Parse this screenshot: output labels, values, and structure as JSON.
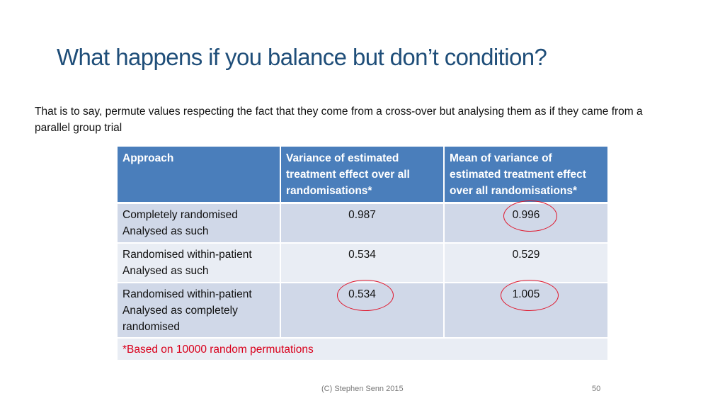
{
  "slide": {
    "title": "What happens if you balance but don’t condition?",
    "intro": "That is to say, permute values respecting the fact that they come from a cross-over but analysing them as if they came from a parallel group trial"
  },
  "table": {
    "headers": [
      "Approach",
      "Variance of estimated treatment effect over all randomisations*",
      "Mean of variance of estimated treatment effect over all randomisations*"
    ],
    "rows": [
      {
        "approach_line1": "Completely randomised",
        "approach_line2": "Analysed as such",
        "variance": "0.987",
        "mean_variance": "0.996"
      },
      {
        "approach_line1": "Randomised within-patient",
        "approach_line2": "Analysed as such",
        "variance": "0.534",
        "mean_variance": "0.529"
      },
      {
        "approach_line1": "Randomised within-patient",
        "approach_line2": "Analysed as completely randomised",
        "variance": "0.534",
        "mean_variance": "1.005"
      }
    ],
    "footnote": "*Based on 10000 random permutations"
  },
  "footer": {
    "credit": "(C) Stephen Senn 2015",
    "page_number": "50"
  },
  "colors": {
    "title": "#1f4e79",
    "header_bg": "#4a7ebb",
    "row_dark": "#d0d8e8",
    "row_light": "#e9edf4",
    "footnote_text": "#d9001b",
    "annotation_circle": "#e0162b"
  }
}
